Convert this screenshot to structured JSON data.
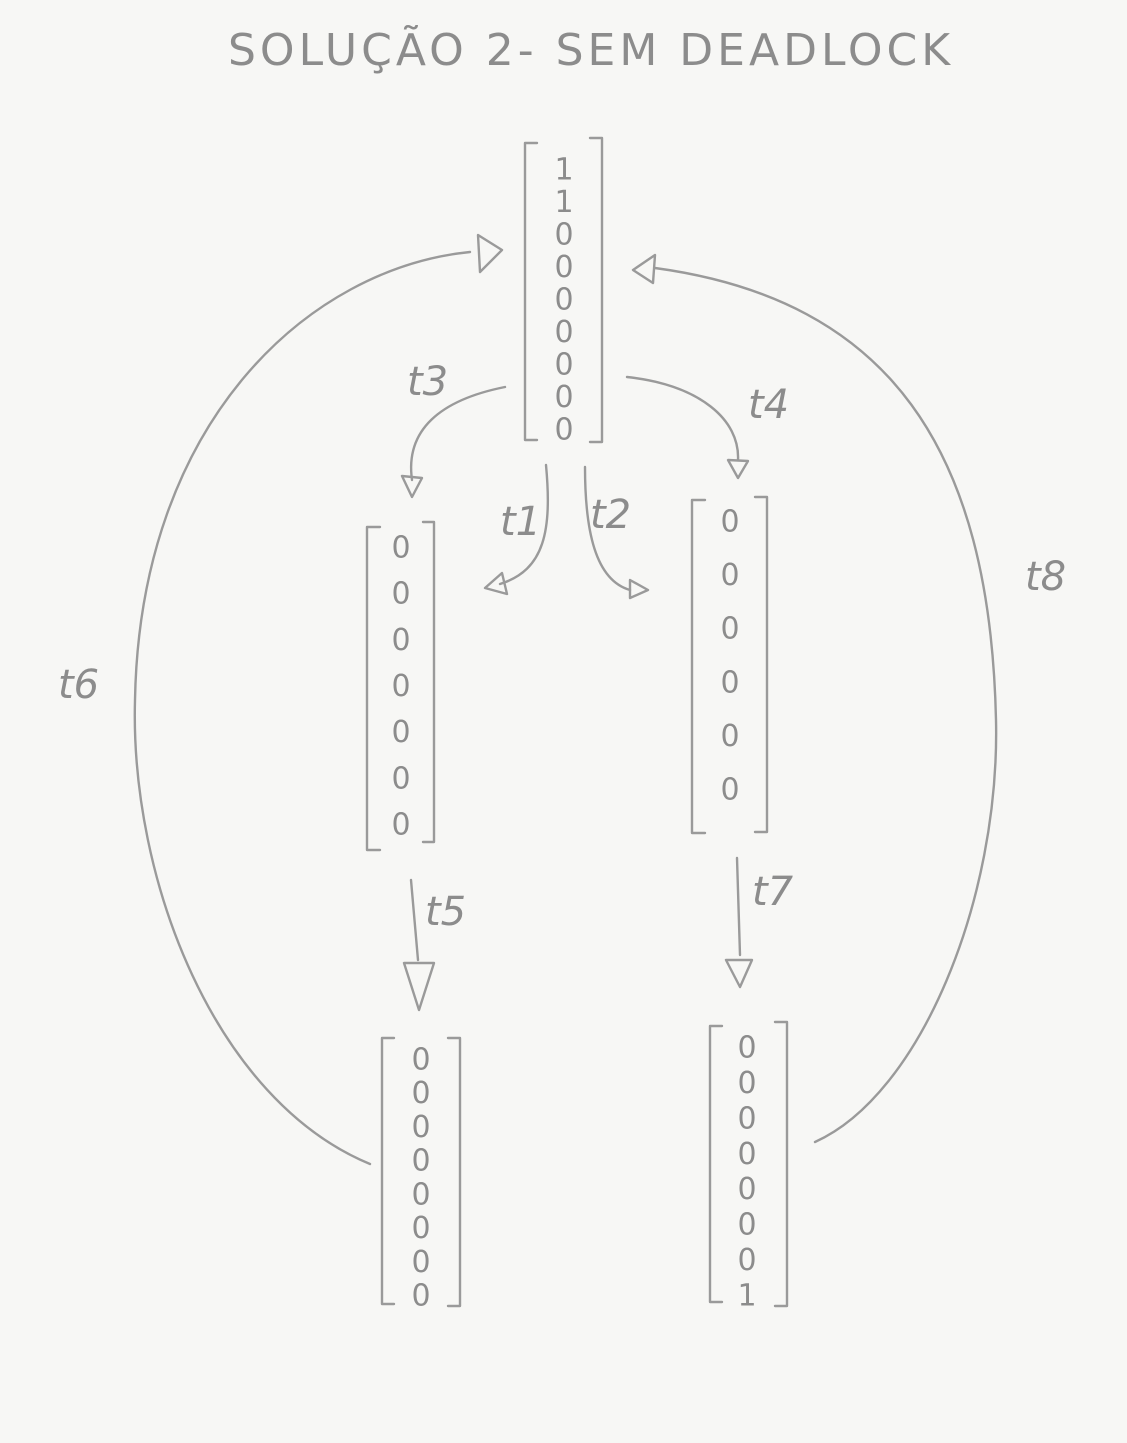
{
  "title": "SOLUÇÃO 2- SEM DEADLOCK",
  "states": {
    "m0": [
      "1",
      "1",
      "0",
      "0",
      "0",
      "0",
      "0",
      "0",
      "0"
    ],
    "m1": [
      "0",
      "0",
      "0",
      "0",
      "0",
      "0",
      "0"
    ],
    "m2": [
      "0",
      "0",
      "0",
      "0",
      "0",
      "0"
    ],
    "m3": [
      "0",
      "0",
      "0",
      "0",
      "0",
      "0",
      "0",
      "0"
    ],
    "m4": [
      "0",
      "0",
      "0",
      "0",
      "0",
      "0",
      "0",
      "1"
    ]
  },
  "transitions": {
    "t1": "t1",
    "t2": "t2",
    "t3": "t3",
    "t4": "t4",
    "t5": "t5",
    "t6": "t6",
    "t7": "t7",
    "t8": "t8"
  }
}
